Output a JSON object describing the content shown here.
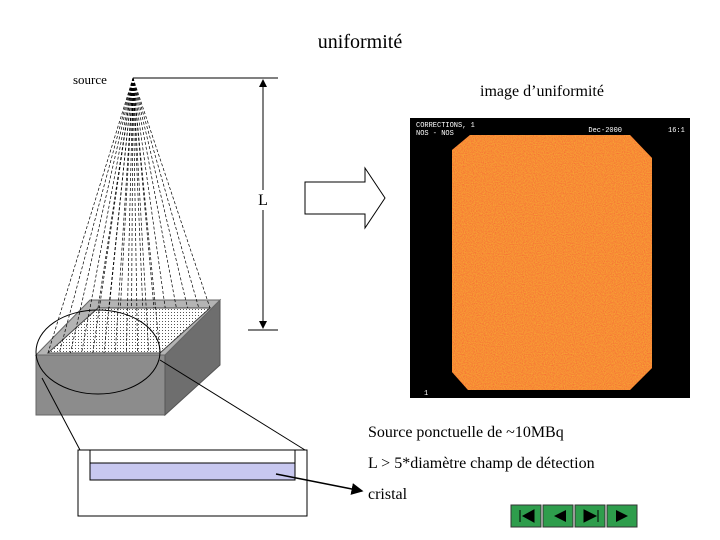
{
  "title": "uniformité",
  "source_label": "source",
  "distance_label": "L",
  "image_title": "image d’uniformité",
  "image_overlay": {
    "line1": "CORRECTIONS, 1",
    "line2": "NOS - NOS",
    "date": "Dec-2000",
    "time": "16:1",
    "corner": "1"
  },
  "notes": [
    "Source ponctuelle de ~10MBq",
    "L > 5*diamètre champ de détection",
    "cristal"
  ]
}
